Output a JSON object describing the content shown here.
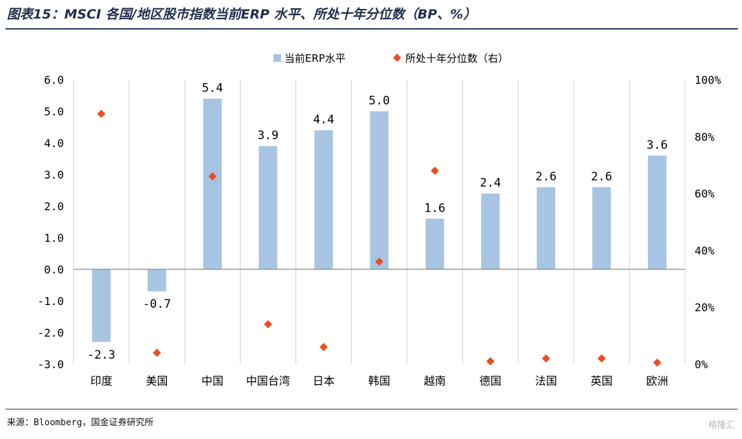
{
  "figure": {
    "title": "图表15：MSCI 各国/地区股市指数当前ERP 水平、所处十年分位数（BP、%）",
    "source": "来源：Bloomberg，国金证券研究所",
    "watermark": "格隆汇"
  },
  "chart_data": {
    "type": "bar",
    "categories": [
      "印度",
      "美国",
      "中国",
      "中国台湾",
      "日本",
      "韩国",
      "越南",
      "德国",
      "法国",
      "英国",
      "欧洲"
    ],
    "series": [
      {
        "name": "当前ERP水平",
        "type": "bar",
        "axis": "left",
        "color": "#a7c5e3",
        "values": [
          -2.3,
          -0.7,
          5.4,
          3.9,
          4.4,
          5.0,
          1.6,
          2.4,
          2.6,
          2.6,
          3.6
        ],
        "labels": [
          "-2.3",
          "-0.7",
          "5.4",
          "3.9",
          "4.4",
          "5.0",
          "1.6",
          "2.4",
          "2.6",
          "2.6",
          "3.6"
        ]
      },
      {
        "name": "所处十年分位数（右）",
        "type": "scatter",
        "marker": "diamond",
        "axis": "right",
        "color": "#e8501f",
        "values": [
          88,
          4,
          66,
          14,
          6,
          36,
          68,
          1,
          2,
          2,
          0.5
        ]
      }
    ],
    "y_left": {
      "ylim": [
        -3.0,
        6.0
      ],
      "ticks": [
        -3.0,
        -2.0,
        -1.0,
        0.0,
        1.0,
        2.0,
        3.0,
        4.0,
        5.0,
        6.0
      ],
      "tick_labels": [
        "-3.0",
        "-2.0",
        "-1.0",
        "0.0",
        "1.0",
        "2.0",
        "3.0",
        "4.0",
        "5.0",
        "6.0"
      ]
    },
    "y_right": {
      "ylim": [
        0,
        100
      ],
      "ticks": [
        0,
        20,
        40,
        60,
        80,
        100
      ],
      "tick_labels": [
        "0%",
        "20%",
        "40%",
        "60%",
        "80%",
        "100%"
      ]
    },
    "grid": "vertical-category-separators",
    "legend_position": "top-center"
  }
}
